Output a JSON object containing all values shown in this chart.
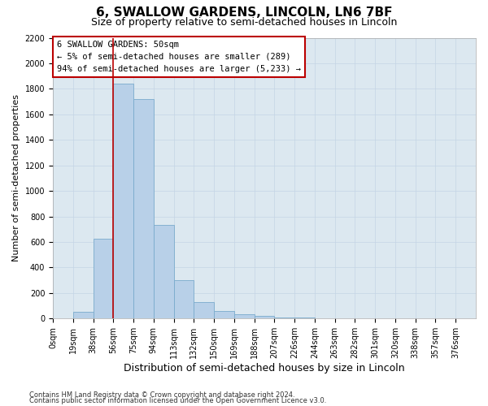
{
  "title1": "6, SWALLOW GARDENS, LINCOLN, LN6 7BF",
  "title2": "Size of property relative to semi-detached houses in Lincoln",
  "xlabel": "Distribution of semi-detached houses by size in Lincoln",
  "ylabel": "Number of semi-detached properties",
  "footnote1": "Contains HM Land Registry data © Crown copyright and database right 2024.",
  "footnote2": "Contains public sector information licensed under the Open Government Licence v3.0.",
  "bar_labels": [
    "0sqm",
    "19sqm",
    "38sqm",
    "56sqm",
    "75sqm",
    "94sqm",
    "113sqm",
    "132sqm",
    "150sqm",
    "169sqm",
    "188sqm",
    "207sqm",
    "226sqm",
    "244sqm",
    "263sqm",
    "282sqm",
    "301sqm",
    "320sqm",
    "338sqm",
    "357sqm",
    "376sqm"
  ],
  "bar_values": [
    5,
    50,
    625,
    1840,
    1720,
    735,
    300,
    130,
    60,
    35,
    20,
    10,
    10,
    0,
    0,
    0,
    0,
    0,
    0,
    0,
    0
  ],
  "bar_color": "#b8d0e8",
  "bar_edge_color": "#7aabcc",
  "red_line_x": 3,
  "highlight_color": "#bb0000",
  "annotation_title": "6 SWALLOW GARDENS: 50sqm",
  "annotation_line1": "← 5% of semi-detached houses are smaller (289)",
  "annotation_line2": "94% of semi-detached houses are larger (5,233) →",
  "annotation_box_edgecolor": "#bb0000",
  "annotation_bg": "#ffffff",
  "ylim": [
    0,
    2200
  ],
  "yticks": [
    0,
    200,
    400,
    600,
    800,
    1000,
    1200,
    1400,
    1600,
    1800,
    2000,
    2200
  ],
  "grid_color": "#c5d5e5",
  "bg_color": "#dce8f0",
  "title1_fontsize": 11,
  "title2_fontsize": 9,
  "xlabel_fontsize": 9,
  "ylabel_fontsize": 8,
  "tick_fontsize": 7,
  "annot_fontsize": 7.5,
  "footnote_fontsize": 6
}
